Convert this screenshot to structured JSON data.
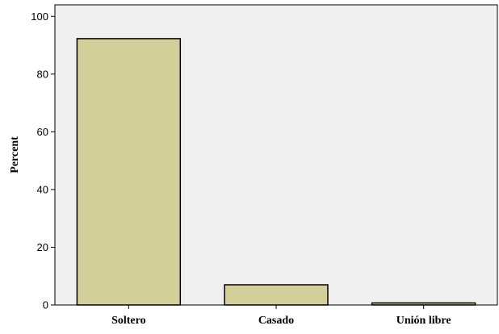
{
  "chart_data": {
    "type": "bar",
    "categories": [
      "Soltero",
      "Casado",
      "Unión libre"
    ],
    "values": [
      92.3,
      7.0,
      0.7
    ],
    "xlabel": "",
    "ylabel": "Percent",
    "ylim": [
      0,
      104
    ],
    "yticks": [
      0,
      20,
      40,
      60,
      80,
      100
    ],
    "grid": false,
    "colors": {
      "bar_fill": "#d3ce9a",
      "bar_stroke": "#000000",
      "plot_background": "#f0f0f0"
    }
  }
}
